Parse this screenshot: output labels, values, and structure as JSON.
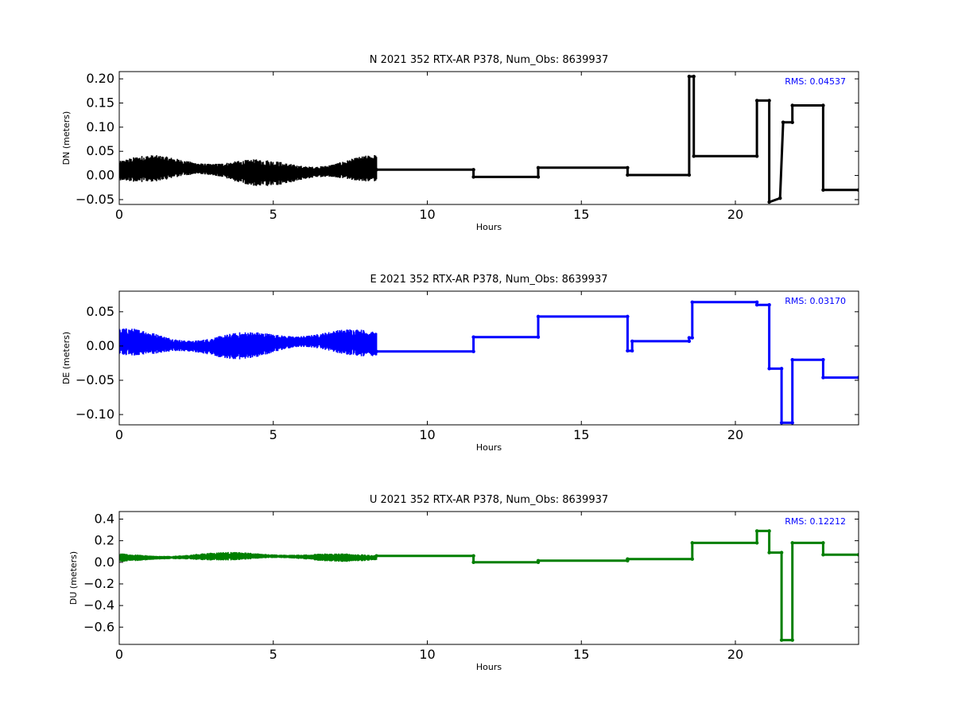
{
  "chart_data": [
    {
      "type": "line",
      "title": "N 2021 352 RTX-AR  P378, Num_Obs: 8639937",
      "xlabel": "Hours",
      "ylabel": "DN (meters)",
      "rms_text": "RMS:  0.04537",
      "color": "#000000",
      "rms_color": "#0000ff",
      "xlim": [
        0,
        24
      ],
      "ylim": [
        -0.06,
        0.215
      ],
      "xticks": [
        0,
        5,
        10,
        15,
        20
      ],
      "xtick_labels": [
        "0",
        "5",
        "10",
        "15",
        "20"
      ],
      "yticks": [
        -0.05,
        0.0,
        0.05,
        0.1,
        0.15,
        0.2
      ],
      "ytick_labels": [
        "−0.05",
        "0.00",
        "0.05",
        "0.10",
        "0.15",
        "0.20"
      ],
      "noise": {
        "x_start": 0.0,
        "x_end": 8.35,
        "center": 0.01,
        "amplitude": 0.028
      },
      "x": [
        8.35,
        11.5,
        11.5,
        13.6,
        13.6,
        16.5,
        16.5,
        18.5,
        18.5,
        18.65,
        18.65,
        20.7,
        20.7,
        21.1,
        21.1,
        21.45,
        21.45,
        21.55,
        21.55,
        21.85,
        21.85,
        22.85,
        22.85,
        24.0
      ],
      "y": [
        0.012,
        0.012,
        -0.003,
        -0.003,
        0.016,
        0.016,
        0.001,
        0.001,
        0.205,
        0.205,
        0.04,
        0.04,
        0.155,
        0.155,
        -0.055,
        -0.047,
        -0.047,
        0.11,
        0.11,
        0.11,
        0.145,
        0.145,
        -0.03,
        -0.03
      ]
    },
    {
      "type": "line",
      "title": "E 2021 352 RTX-AR  P378, Num_Obs: 8639937",
      "xlabel": "Hours",
      "ylabel": "DE (meters)",
      "rms_text": "RMS:  0.03170",
      "color": "#0000ff",
      "rms_color": "#0000ff",
      "xlim": [
        0,
        24
      ],
      "ylim": [
        -0.115,
        0.08
      ],
      "xticks": [
        0,
        5,
        10,
        15,
        20
      ],
      "xtick_labels": [
        "0",
        "5",
        "10",
        "15",
        "20"
      ],
      "yticks": [
        -0.1,
        -0.05,
        0.0,
        0.05
      ],
      "ytick_labels": [
        "−0.10",
        "−0.05",
        "0.00",
        "0.05"
      ],
      "noise": {
        "x_start": 0.0,
        "x_end": 8.35,
        "center": 0.003,
        "amplitude": 0.02
      },
      "x": [
        8.35,
        11.5,
        11.5,
        13.6,
        13.6,
        16.5,
        16.5,
        16.65,
        16.65,
        18.5,
        18.5,
        18.6,
        18.6,
        20.7,
        20.7,
        21.1,
        21.1,
        21.5,
        21.5,
        21.85,
        21.85,
        22.85,
        22.85,
        24.0
      ],
      "y": [
        -0.008,
        -0.008,
        0.013,
        0.013,
        0.043,
        0.043,
        -0.007,
        -0.007,
        0.007,
        0.007,
        0.012,
        0.012,
        0.064,
        0.064,
        0.06,
        0.06,
        -0.033,
        -0.033,
        -0.112,
        -0.112,
        -0.02,
        -0.02,
        -0.046,
        -0.046
      ]
    },
    {
      "type": "line",
      "title": "U 2021 352 RTX-AR  P378, Num_Obs: 8639937",
      "xlabel": "Hours",
      "ylabel": "DU (meters)",
      "rms_text": "RMS:  0.12212",
      "color": "#007f00",
      "rms_color": "#0000ff",
      "xlim": [
        0,
        24
      ],
      "ylim": [
        -0.76,
        0.47
      ],
      "xticks": [
        0,
        5,
        10,
        15,
        20
      ],
      "xtick_labels": [
        "0",
        "5",
        "10",
        "15",
        "20"
      ],
      "yticks": [
        -0.6,
        -0.4,
        -0.2,
        0.0,
        0.2,
        0.4
      ],
      "ytick_labels": [
        "−0.6",
        "−0.4",
        "−0.2",
        "0.0",
        "0.2",
        "0.4"
      ],
      "noise": {
        "x_start": 0.0,
        "x_end": 8.35,
        "center": 0.05,
        "amplitude": 0.04
      },
      "x": [
        8.35,
        11.5,
        11.5,
        13.6,
        13.6,
        16.5,
        16.5,
        18.6,
        18.6,
        20.7,
        20.7,
        21.1,
        21.1,
        21.5,
        21.5,
        21.85,
        21.85,
        22.85,
        22.85,
        24.0
      ],
      "y": [
        0.06,
        0.06,
        0.0,
        0.0,
        0.015,
        0.015,
        0.03,
        0.03,
        0.18,
        0.18,
        0.29,
        0.29,
        0.09,
        0.09,
        -0.72,
        -0.72,
        0.18,
        0.18,
        0.07,
        0.07
      ]
    }
  ]
}
